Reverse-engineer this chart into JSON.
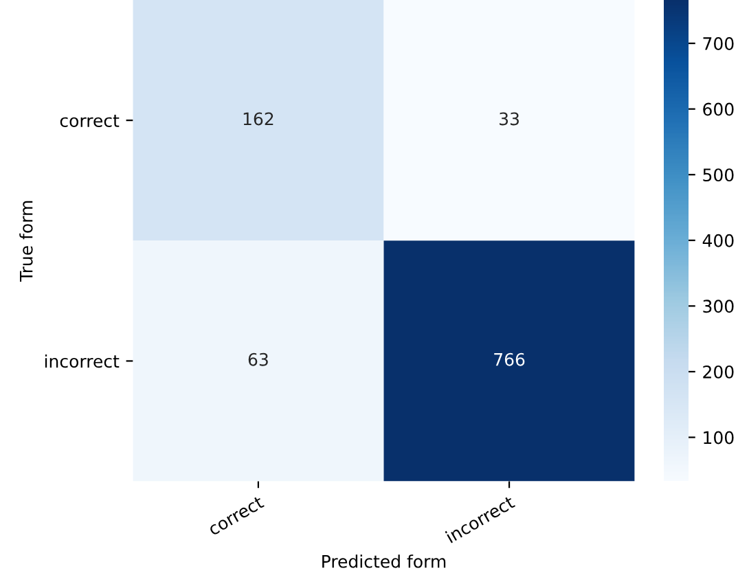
{
  "chart_data": {
    "type": "heatmap",
    "xlabel": "Predicted form",
    "ylabel": "True form",
    "categories": [
      "correct",
      "incorrect"
    ],
    "y_categories": [
      "correct",
      "incorrect"
    ],
    "cells": [
      [
        162,
        33
      ],
      [
        63,
        766
      ]
    ],
    "clim": [
      33,
      766
    ],
    "cticks": [
      100,
      200,
      300,
      400,
      500,
      600,
      700
    ],
    "data_labels": true
  }
}
